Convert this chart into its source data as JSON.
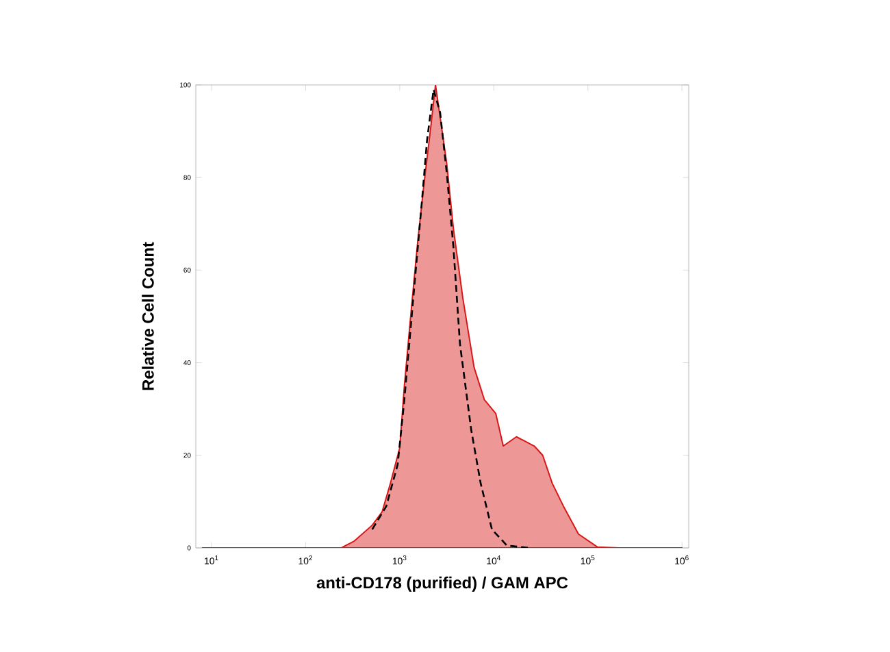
{
  "chart_data": {
    "type": "area",
    "xlabel": "anti-CD178 (purified) / GAM APC",
    "ylabel": "Relative Cell Count",
    "log": "x",
    "xlim": [
      6.8,
      1180000
    ],
    "ylim": [
      0,
      100
    ],
    "xticks": [
      {
        "value": 10,
        "label": "10$^{1}$"
      },
      {
        "value": 100,
        "label": "10$^{2}$"
      },
      {
        "value": 1000,
        "label": "10$^{3}$"
      },
      {
        "value": 10000,
        "label": "10$^{4}$"
      },
      {
        "value": 100000,
        "label": "10$^{5}$"
      },
      {
        "value": 1000000,
        "label": "10$^{6}$"
      }
    ],
    "yticks": [
      0,
      20,
      40,
      60,
      80,
      100
    ],
    "series": [
      {
        "color": "#d81818",
        "x": [
          8,
          240,
          330,
          510,
          650,
          790,
          1000,
          1120,
          1320,
          1550,
          1820,
          2140,
          2400,
          2690,
          3160,
          3720,
          4680,
          6170,
          7940,
          10500,
          12600,
          17400,
          26900,
          33100,
          41700,
          55000,
          79400,
          126000,
          214000,
          1000000
        ],
        "values": [
          0,
          0,
          1.5,
          4.9,
          7.8,
          13.7,
          21.6,
          35,
          51,
          66,
          79,
          91,
          100,
          93,
          83,
          69,
          54,
          39,
          32,
          29,
          22,
          24,
          22,
          20,
          14,
          9,
          3,
          0.2,
          0,
          0
        ]
      },
      {
        "type": "line",
        "color": "#000000",
        "line_style": "dashed",
        "x": [
          510,
          720,
          950,
          1120,
          1380,
          1740,
          1950,
          2290,
          2690,
          3160,
          3720,
          4370,
          5750,
          7240,
          9550,
          13800,
          24000
        ],
        "values": [
          4,
          9,
          18,
          32,
          53,
          76,
          88,
          99,
          94,
          81,
          65,
          44,
          25.5,
          14,
          4,
          0.5,
          0
        ]
      }
    ]
  }
}
